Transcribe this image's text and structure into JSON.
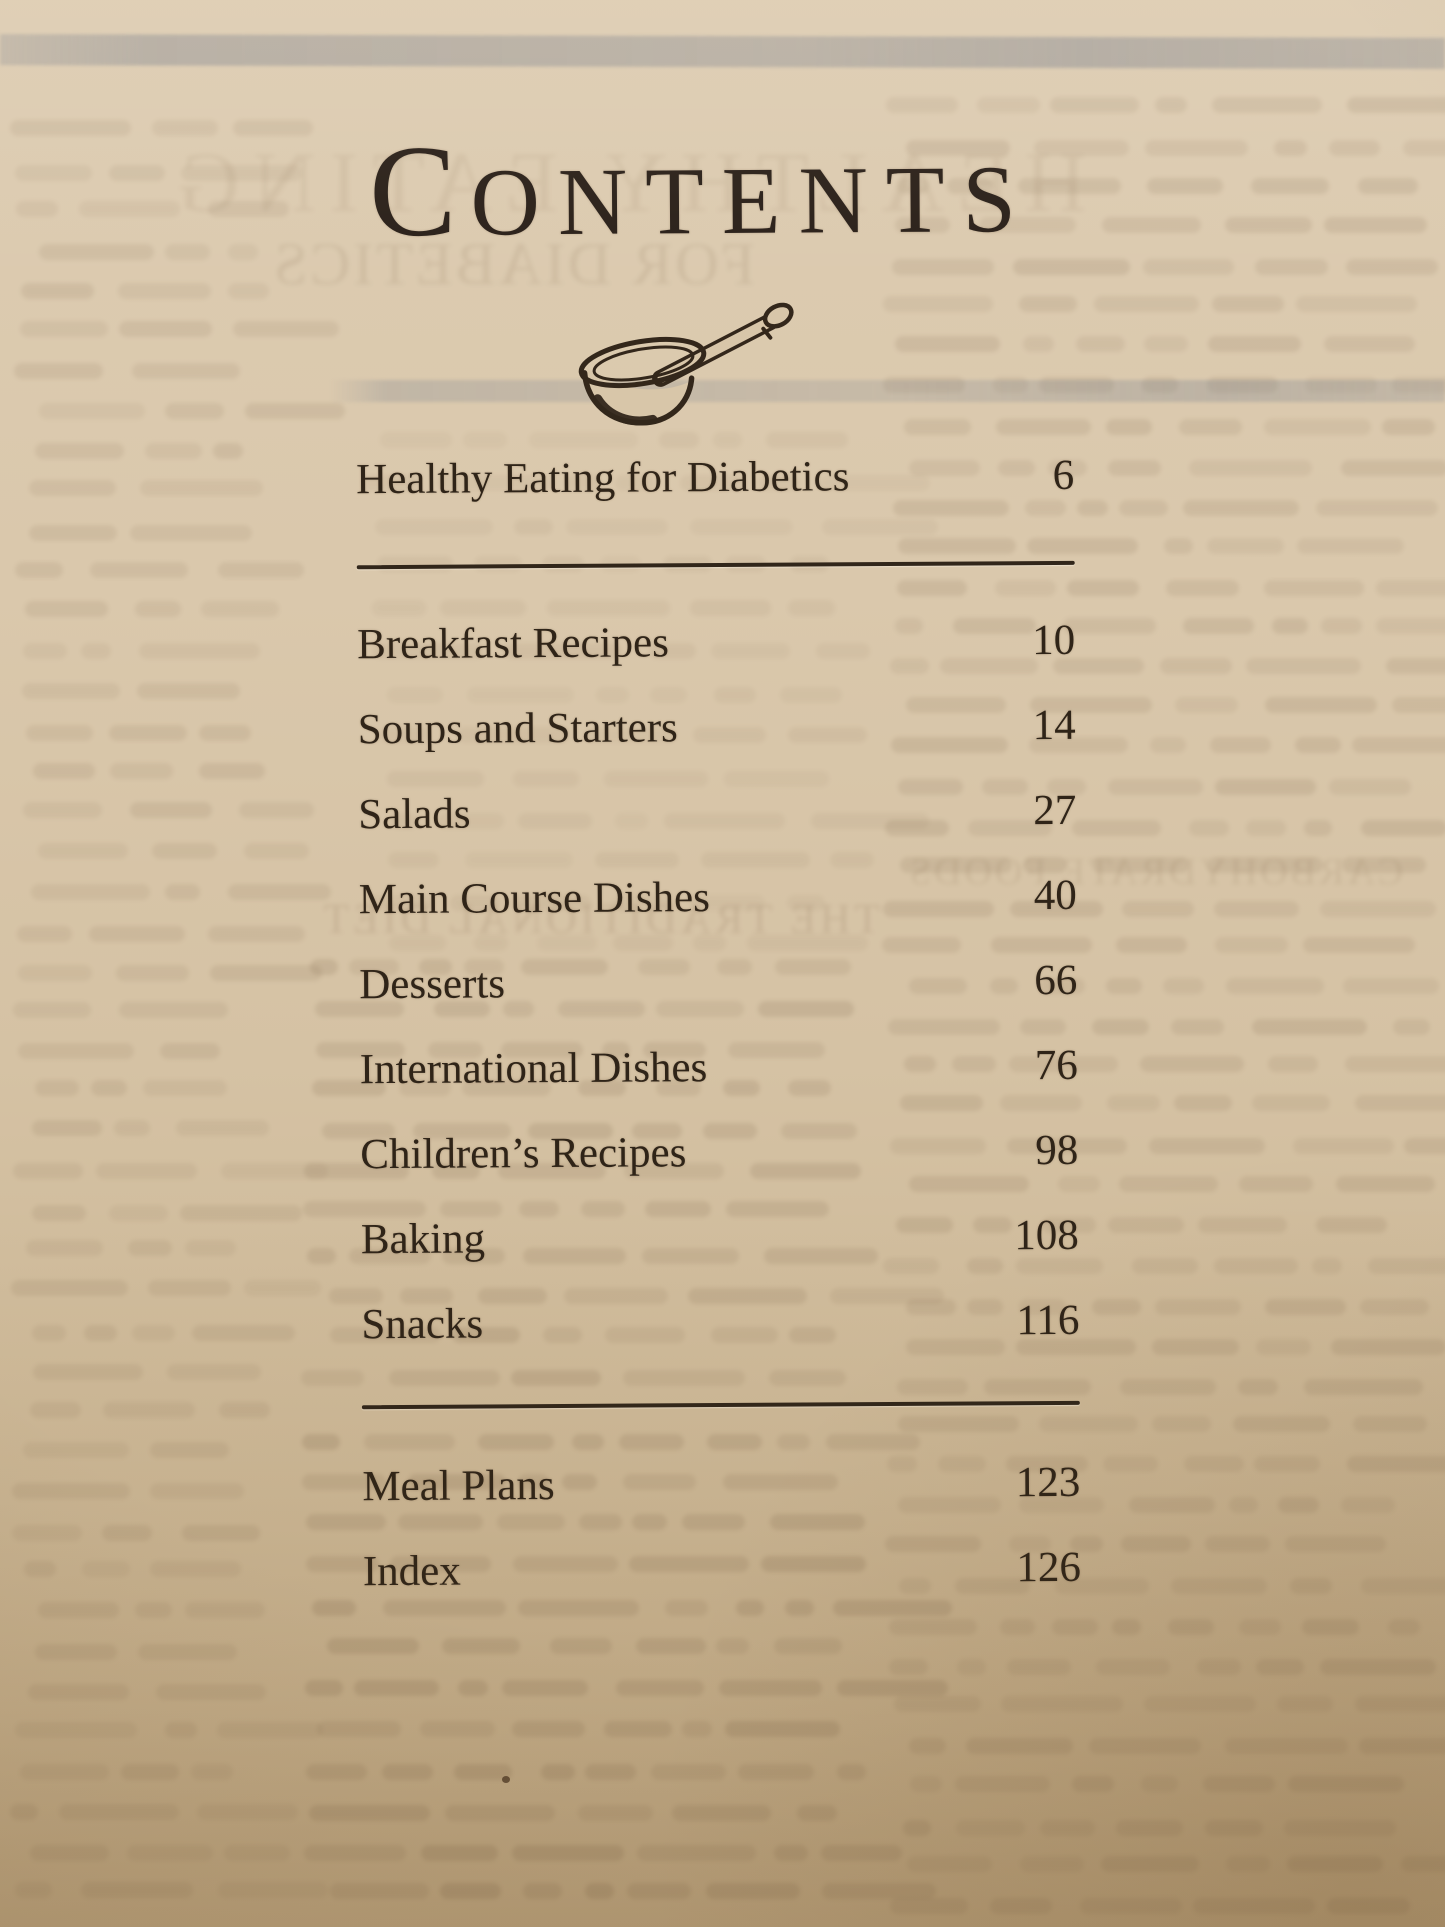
{
  "page_title": "CONTENTS",
  "toc": {
    "entries": [
      {
        "label": "Healthy Eating for Diabetics",
        "page": "6"
      },
      {
        "label": "Breakfast Recipes",
        "page": "10"
      },
      {
        "label": "Soups and Starters",
        "page": "14"
      },
      {
        "label": "Salads",
        "page": "27"
      },
      {
        "label": "Main Course Dishes",
        "page": "40"
      },
      {
        "label": "Desserts",
        "page": "66"
      },
      {
        "label": "International Dishes",
        "page": "76"
      },
      {
        "label": "Children’s Recipes",
        "page": "98"
      },
      {
        "label": "Baking",
        "page": "108"
      },
      {
        "label": "Snacks",
        "page": "116"
      },
      {
        "label": "Meal Plans",
        "page": "123"
      },
      {
        "label": "Index",
        "page": "126"
      }
    ]
  },
  "illustration": {
    "name": "mortar-and-pestle"
  },
  "ghost_showthrough": {
    "line1": "HEALTHY EATING",
    "line2": "FOR DIABETICS",
    "heading_mid": "THE TRADITIONAL DIET",
    "heading_right": "CARBOHYDRATE FOODS"
  },
  "colors": {
    "paper": "#d8c6a9",
    "ink": "#2f2418",
    "showthrough_band": "#83868e"
  }
}
